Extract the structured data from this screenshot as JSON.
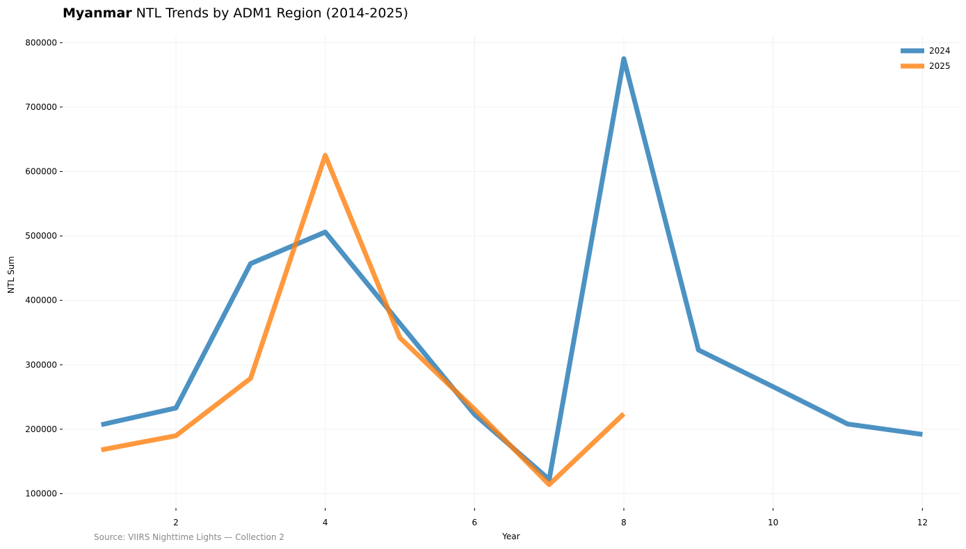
{
  "title": {
    "bold": "Myanmar",
    "rest": " NTL Trends by ADM1 Region (2014-2025)"
  },
  "source": "Source: VIIRS Nighttime Lights — Collection 2",
  "chart_data": {
    "type": "line",
    "xlabel": "Year",
    "ylabel": "NTL Sum",
    "xlim": [
      0.5,
      12.5
    ],
    "ylim": [
      80000,
      810000
    ],
    "xticks": [
      2,
      4,
      6,
      8,
      10,
      12
    ],
    "yticks": [
      100000,
      200000,
      300000,
      400000,
      500000,
      600000,
      700000,
      800000
    ],
    "grid": true,
    "legend_position": "top-right",
    "series": [
      {
        "name": "2024",
        "color": "#1f77b4",
        "x": [
          1,
          2,
          3,
          4,
          5,
          6,
          7,
          8,
          9,
          10,
          11,
          12
        ],
        "y": [
          207000,
          233000,
          457000,
          506000,
          364000,
          223000,
          122000,
          775000,
          323000,
          266000,
          208000,
          192000
        ]
      },
      {
        "name": "2025",
        "color": "#ff7f0e",
        "x": [
          1,
          2,
          3,
          4,
          5,
          6,
          7,
          8
        ],
        "y": [
          168000,
          190000,
          279000,
          625000,
          342000,
          231000,
          114000,
          224000
        ]
      }
    ]
  }
}
